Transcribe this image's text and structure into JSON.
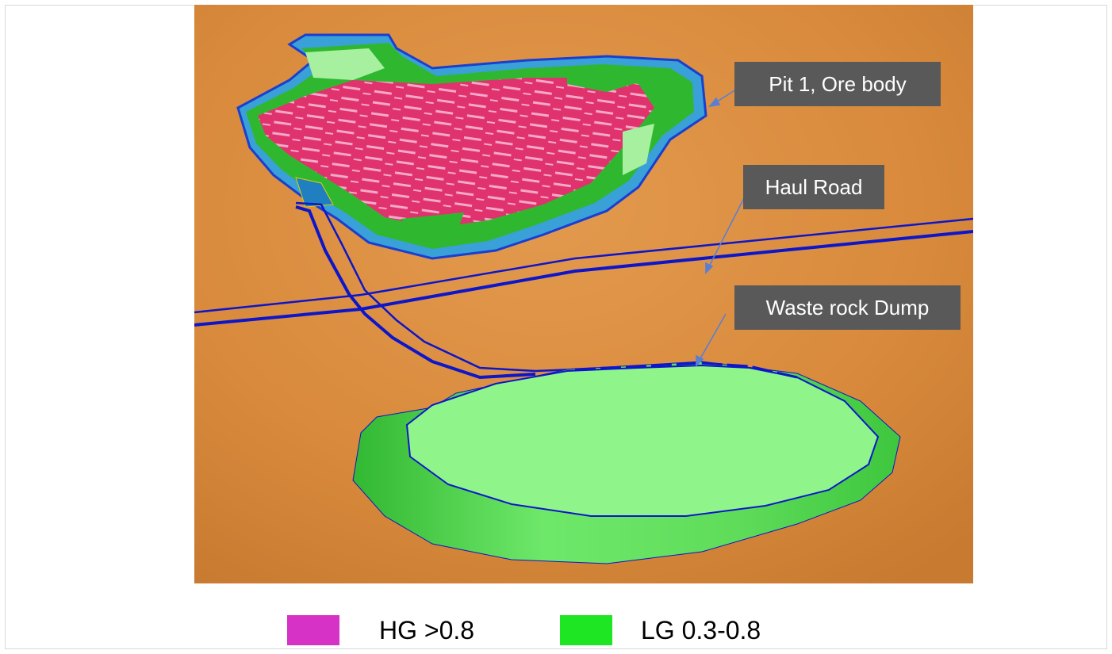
{
  "callouts": {
    "pit": "Pit 1, Ore body",
    "road": "Haul Road",
    "dump": "Waste rock Dump"
  },
  "legend": [
    {
      "label": "HG >0.8",
      "color": "#d633c6"
    },
    {
      "label": "LG 0.3-0.8",
      "color": "#1ee623"
    }
  ],
  "colors": {
    "terrain": "#d98a3c",
    "road": "#0d16c9",
    "ore_high": "#e0336e",
    "ore_low": "#2fb82f",
    "pit_wall": "#3aa0d8",
    "dump_top": "#8ff58a",
    "dump_side": "#3ec63e"
  }
}
